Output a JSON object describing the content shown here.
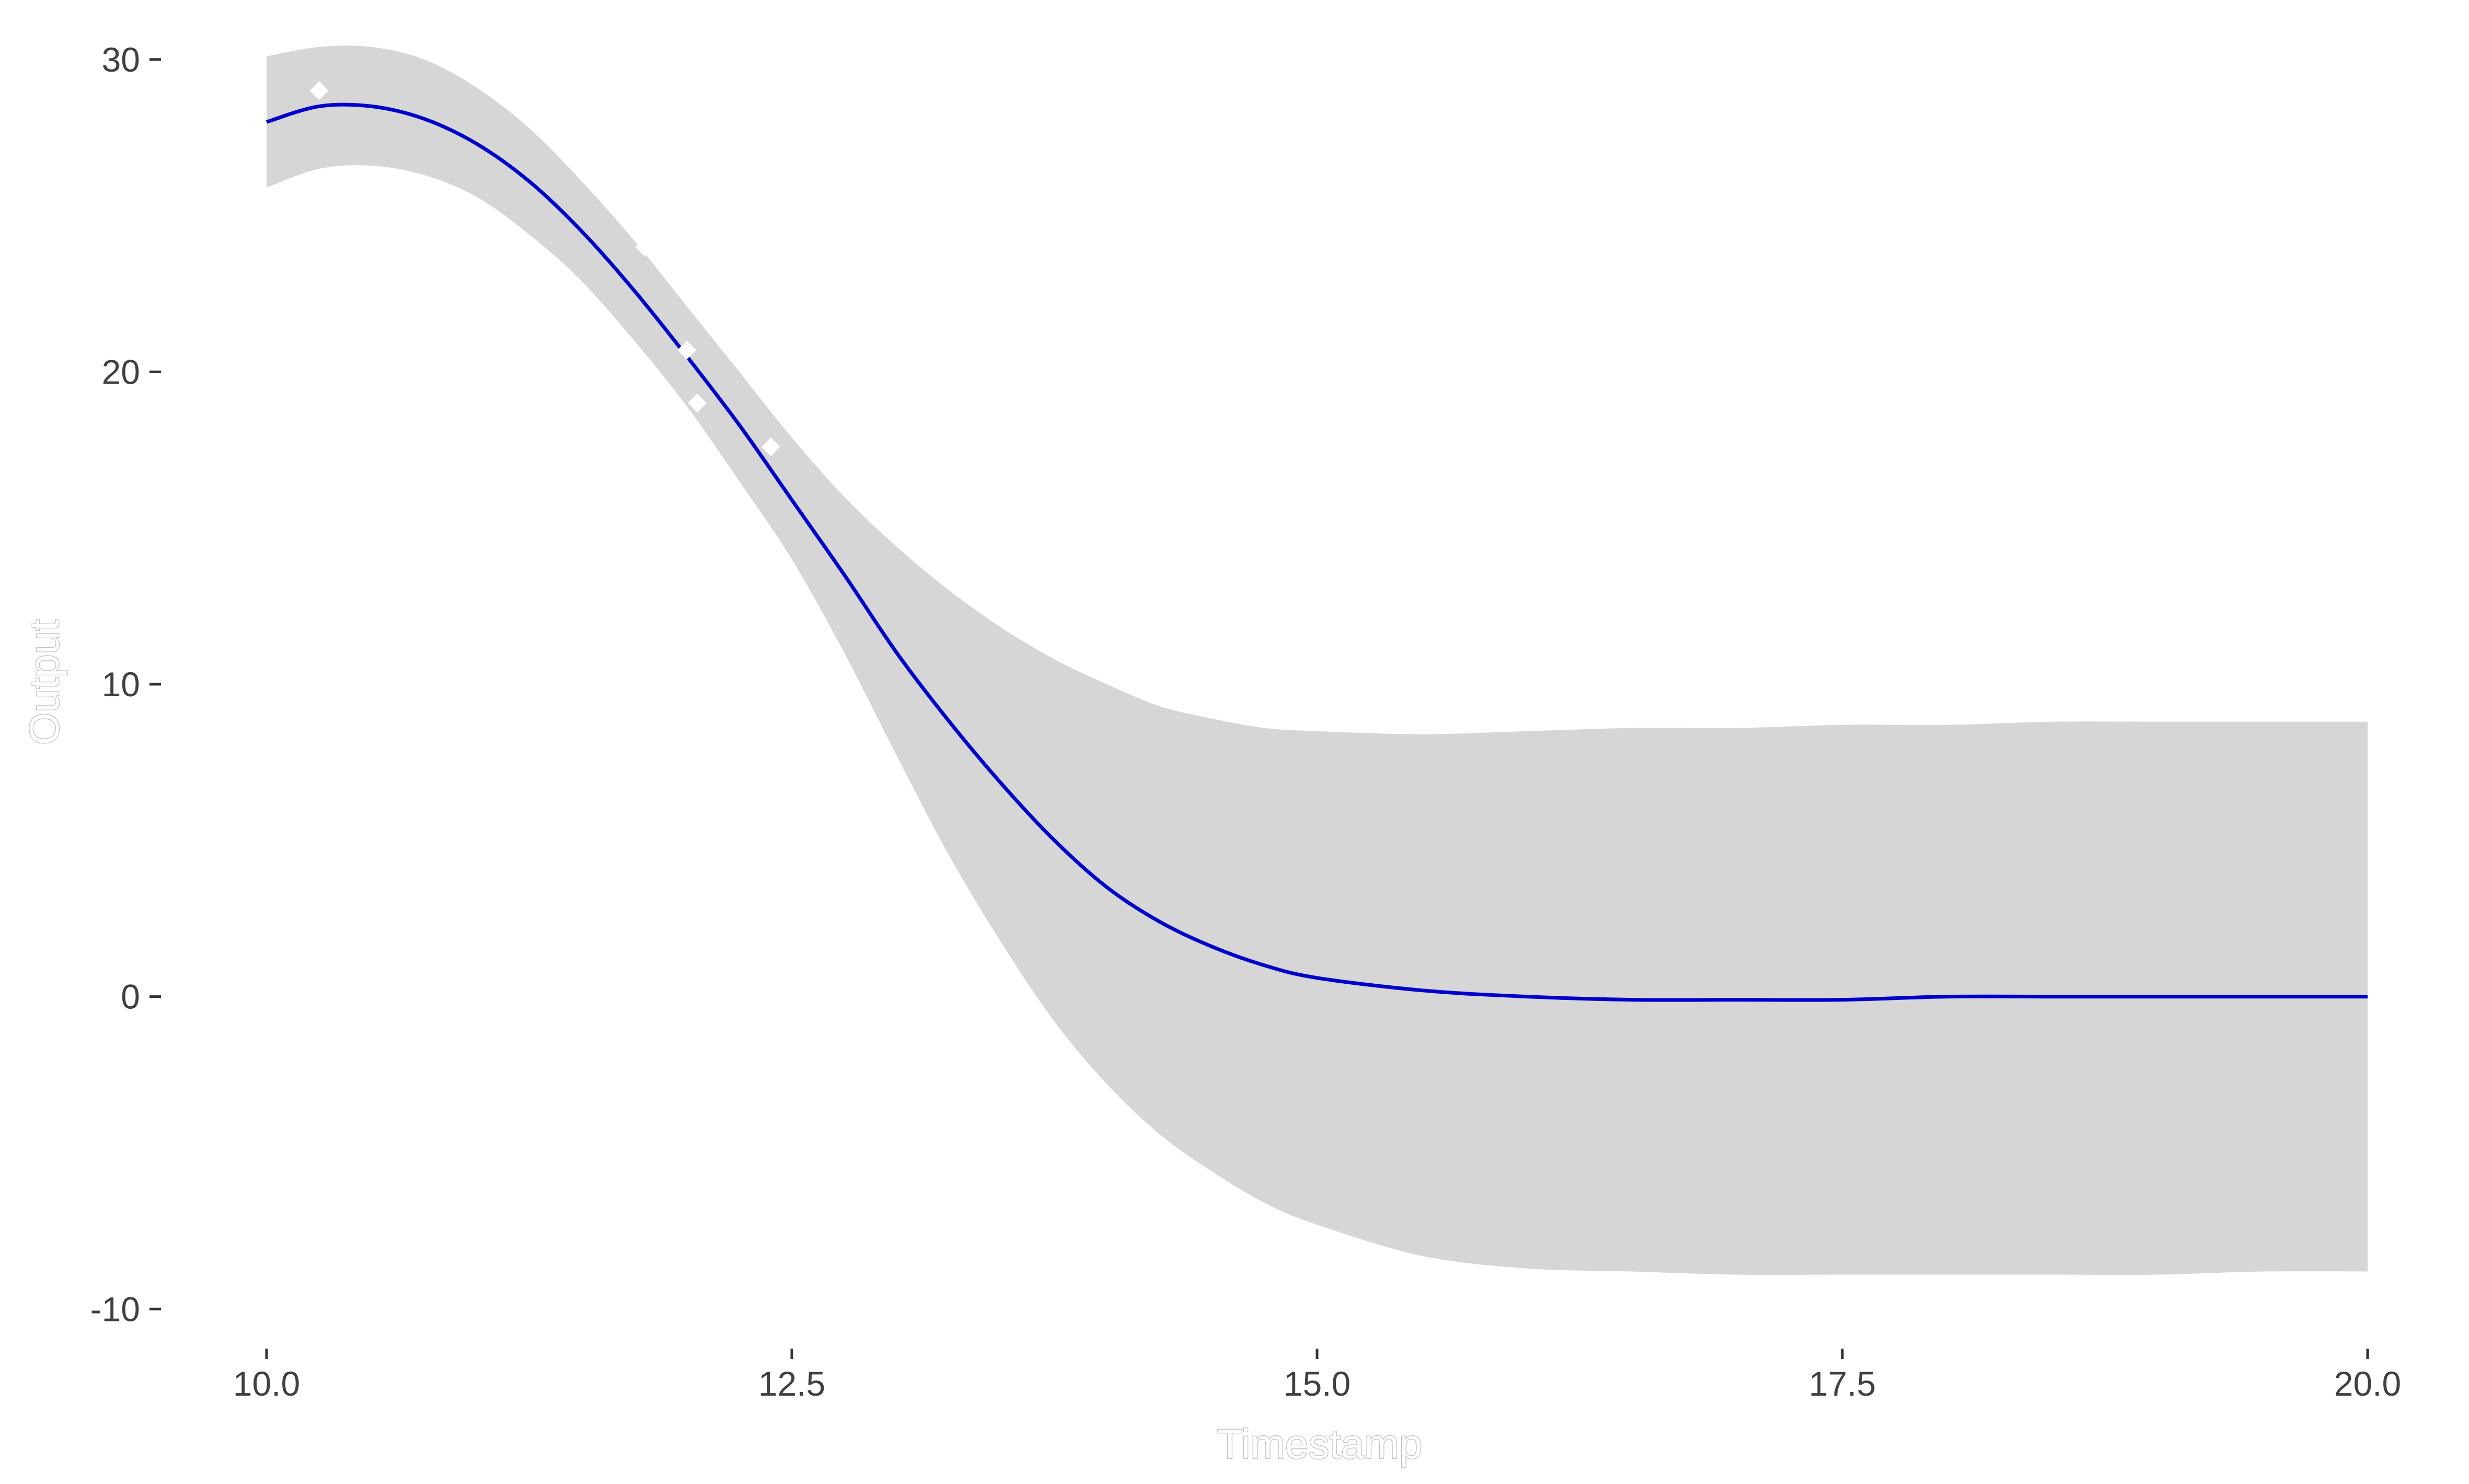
{
  "chart_data": {
    "type": "line",
    "title": "",
    "xlabel": "Timestamp",
    "ylabel": "Output",
    "xlim": [
      10.0,
      20.0
    ],
    "ylim": [
      -11.1,
      30.9
    ],
    "x_ticks": [
      10.0,
      12.5,
      15.0,
      17.5,
      20.0
    ],
    "x_tick_labels": [
      "10.0",
      "12.5",
      "15.0",
      "17.5",
      "20.0"
    ],
    "y_ticks": [
      30,
      20,
      10,
      0,
      -10
    ],
    "y_tick_labels": [
      "30",
      "20",
      "10",
      "0",
      "-10"
    ],
    "grid": false,
    "legend": "none",
    "colors": {
      "line": "#0000cc",
      "band": "#d6d6d6",
      "points": "#ffffff",
      "tick_text": "#404040",
      "axis_title": "#bdbdbd"
    },
    "series": [
      {
        "kind": "mean",
        "x": [
          10.0,
          10.25,
          10.5,
          10.75,
          11.0,
          11.25,
          11.5,
          11.75,
          12.0,
          12.25,
          12.5,
          12.75,
          13.0,
          13.25,
          13.5,
          13.75,
          14.0,
          14.25,
          14.5,
          14.75,
          15.0,
          15.5,
          16.0,
          16.5,
          17.0,
          17.5,
          18.0,
          18.5,
          19.0,
          19.5,
          20.0
        ],
        "y": [
          28.0,
          28.5,
          28.5,
          28.1,
          27.3,
          26.1,
          24.5,
          22.6,
          20.5,
          18.3,
          15.9,
          13.5,
          11.0,
          8.8,
          6.8,
          5.0,
          3.5,
          2.4,
          1.6,
          1.0,
          0.6,
          0.2,
          0.0,
          -0.1,
          -0.1,
          -0.1,
          0.0,
          0.0,
          0.0,
          0.0,
          0.0
        ]
      },
      {
        "kind": "band_upper",
        "x": [
          10.0,
          10.25,
          10.5,
          10.75,
          11.0,
          11.25,
          11.5,
          11.75,
          12.0,
          12.25,
          12.5,
          12.75,
          13.0,
          13.25,
          13.5,
          13.75,
          14.0,
          14.25,
          14.5,
          14.75,
          15.0,
          15.5,
          16.0,
          16.5,
          17.0,
          17.5,
          18.0,
          18.5,
          19.0,
          19.5,
          20.0
        ],
        "y": [
          30.1,
          30.4,
          30.4,
          30.0,
          29.1,
          27.8,
          26.1,
          24.2,
          22.1,
          20.0,
          17.9,
          16.0,
          14.4,
          13.0,
          11.8,
          10.8,
          10.0,
          9.3,
          8.9,
          8.6,
          8.5,
          8.4,
          8.5,
          8.6,
          8.6,
          8.7,
          8.7,
          8.8,
          8.8,
          8.8,
          8.8
        ]
      },
      {
        "kind": "band_lower",
        "x": [
          10.0,
          10.25,
          10.5,
          10.75,
          11.0,
          11.25,
          11.5,
          11.75,
          12.0,
          12.25,
          12.5,
          12.75,
          13.0,
          13.25,
          13.5,
          13.75,
          14.0,
          14.25,
          14.5,
          14.75,
          15.0,
          15.5,
          16.0,
          16.5,
          17.0,
          17.5,
          18.0,
          18.5,
          19.0,
          19.5,
          20.0
        ],
        "y": [
          25.9,
          26.5,
          26.6,
          26.3,
          25.6,
          24.4,
          22.9,
          21.0,
          18.9,
          16.5,
          14.0,
          11.0,
          7.7,
          4.5,
          1.7,
          -0.8,
          -2.8,
          -4.4,
          -5.6,
          -6.6,
          -7.3,
          -8.3,
          -8.7,
          -8.8,
          -8.9,
          -8.9,
          -8.9,
          -8.9,
          -8.9,
          -8.8,
          -8.8
        ]
      },
      {
        "kind": "observations",
        "x": [
          10.25,
          11.8,
          12.0,
          12.05,
          12.4
        ],
        "y": [
          29.0,
          24.0,
          20.7,
          19.0,
          17.6
        ]
      }
    ]
  }
}
